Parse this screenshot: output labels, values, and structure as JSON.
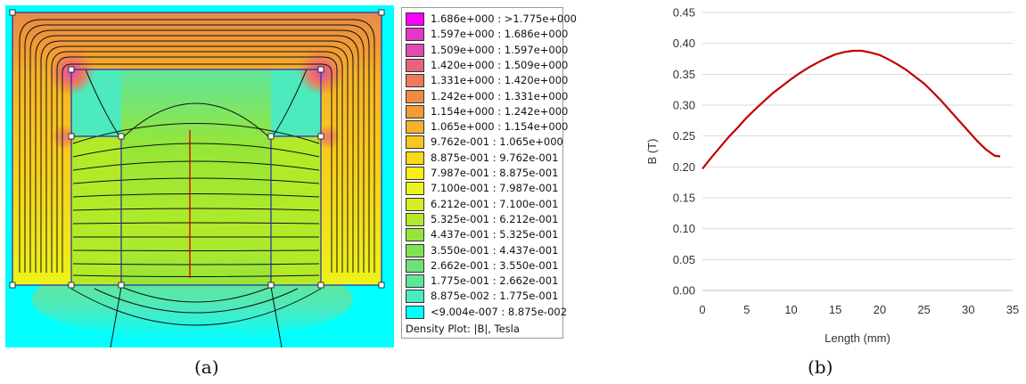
{
  "panel_a": {
    "label": "(a)",
    "legend": {
      "entries": [
        {
          "label": "1.686e+000 : >1.775e+000",
          "color": "#ff00ff"
        },
        {
          "label": "1.597e+000 : 1.686e+000",
          "color": "#e836c8"
        },
        {
          "label": "1.509e+000 : 1.597e+000",
          "color": "#e04bb0"
        },
        {
          "label": "1.420e+000 : 1.509e+000",
          "color": "#e6647f"
        },
        {
          "label": "1.331e+000 : 1.420e+000",
          "color": "#ee7a5a"
        },
        {
          "label": "1.242e+000 : 1.331e+000",
          "color": "#f08a43"
        },
        {
          "label": "1.154e+000 : 1.242e+000",
          "color": "#f29c33"
        },
        {
          "label": "1.065e+000 : 1.154e+000",
          "color": "#f5b22a"
        },
        {
          "label": "9.762e-001 : 1.065e+000",
          "color": "#f8c61e"
        },
        {
          "label": "8.875e-001 : 9.762e-001",
          "color": "#fbda14"
        },
        {
          "label": "7.987e-001 : 8.875e-001",
          "color": "#fdee12"
        },
        {
          "label": "7.100e-001 : 7.987e-001",
          "color": "#edf21a"
        },
        {
          "label": "6.212e-001 : 7.100e-001",
          "color": "#d3ef22"
        },
        {
          "label": "5.325e-001 : 6.212e-001",
          "color": "#b2ea2a"
        },
        {
          "label": "4.437e-001 : 5.325e-001",
          "color": "#95e638"
        },
        {
          "label": "3.550e-001 : 4.437e-001",
          "color": "#7fe454"
        },
        {
          "label": "2.662e-001 : 3.550e-001",
          "color": "#6ee27a"
        },
        {
          "label": "1.775e-001 : 2.662e-001",
          "color": "#5fe59c"
        },
        {
          "label": "8.875e-002 : 1.775e-001",
          "color": "#4deabe"
        },
        {
          "label": "<9.004e-007 : 8.875e-002",
          "color": "#00ffff"
        }
      ],
      "caption": "Density Plot: |B|, Tesla"
    }
  },
  "panel_b": {
    "label": "(b)"
  },
  "chart_data": {
    "type": "line",
    "title": "",
    "xlabel": "Length (mm)",
    "ylabel": "B (T)",
    "xlim": [
      0,
      35
    ],
    "ylim": [
      0,
      0.45
    ],
    "xticks": [
      "0",
      "5",
      "10",
      "15",
      "20",
      "25",
      "30",
      "35"
    ],
    "yticks": [
      "0.00",
      "0.05",
      "0.10",
      "0.15",
      "0.20",
      "0.25",
      "0.30",
      "0.35",
      "0.40",
      "0.45"
    ],
    "grid": "horizontal",
    "series": [
      {
        "color": "#c00000",
        "x": [
          0,
          1,
          2,
          3,
          4,
          5,
          6,
          7,
          8,
          9,
          10,
          11,
          12,
          13,
          14,
          15,
          16,
          17,
          18,
          19,
          20,
          21,
          22,
          23,
          24,
          25,
          26,
          27,
          28,
          29,
          30,
          31,
          32,
          33,
          33.6
        ],
        "y": [
          0.197,
          0.215,
          0.232,
          0.249,
          0.264,
          0.28,
          0.294,
          0.307,
          0.32,
          0.331,
          0.342,
          0.352,
          0.361,
          0.369,
          0.376,
          0.382,
          0.386,
          0.388,
          0.388,
          0.385,
          0.381,
          0.374,
          0.366,
          0.357,
          0.346,
          0.335,
          0.321,
          0.306,
          0.29,
          0.274,
          0.258,
          0.242,
          0.228,
          0.218,
          0.217
        ]
      }
    ]
  }
}
